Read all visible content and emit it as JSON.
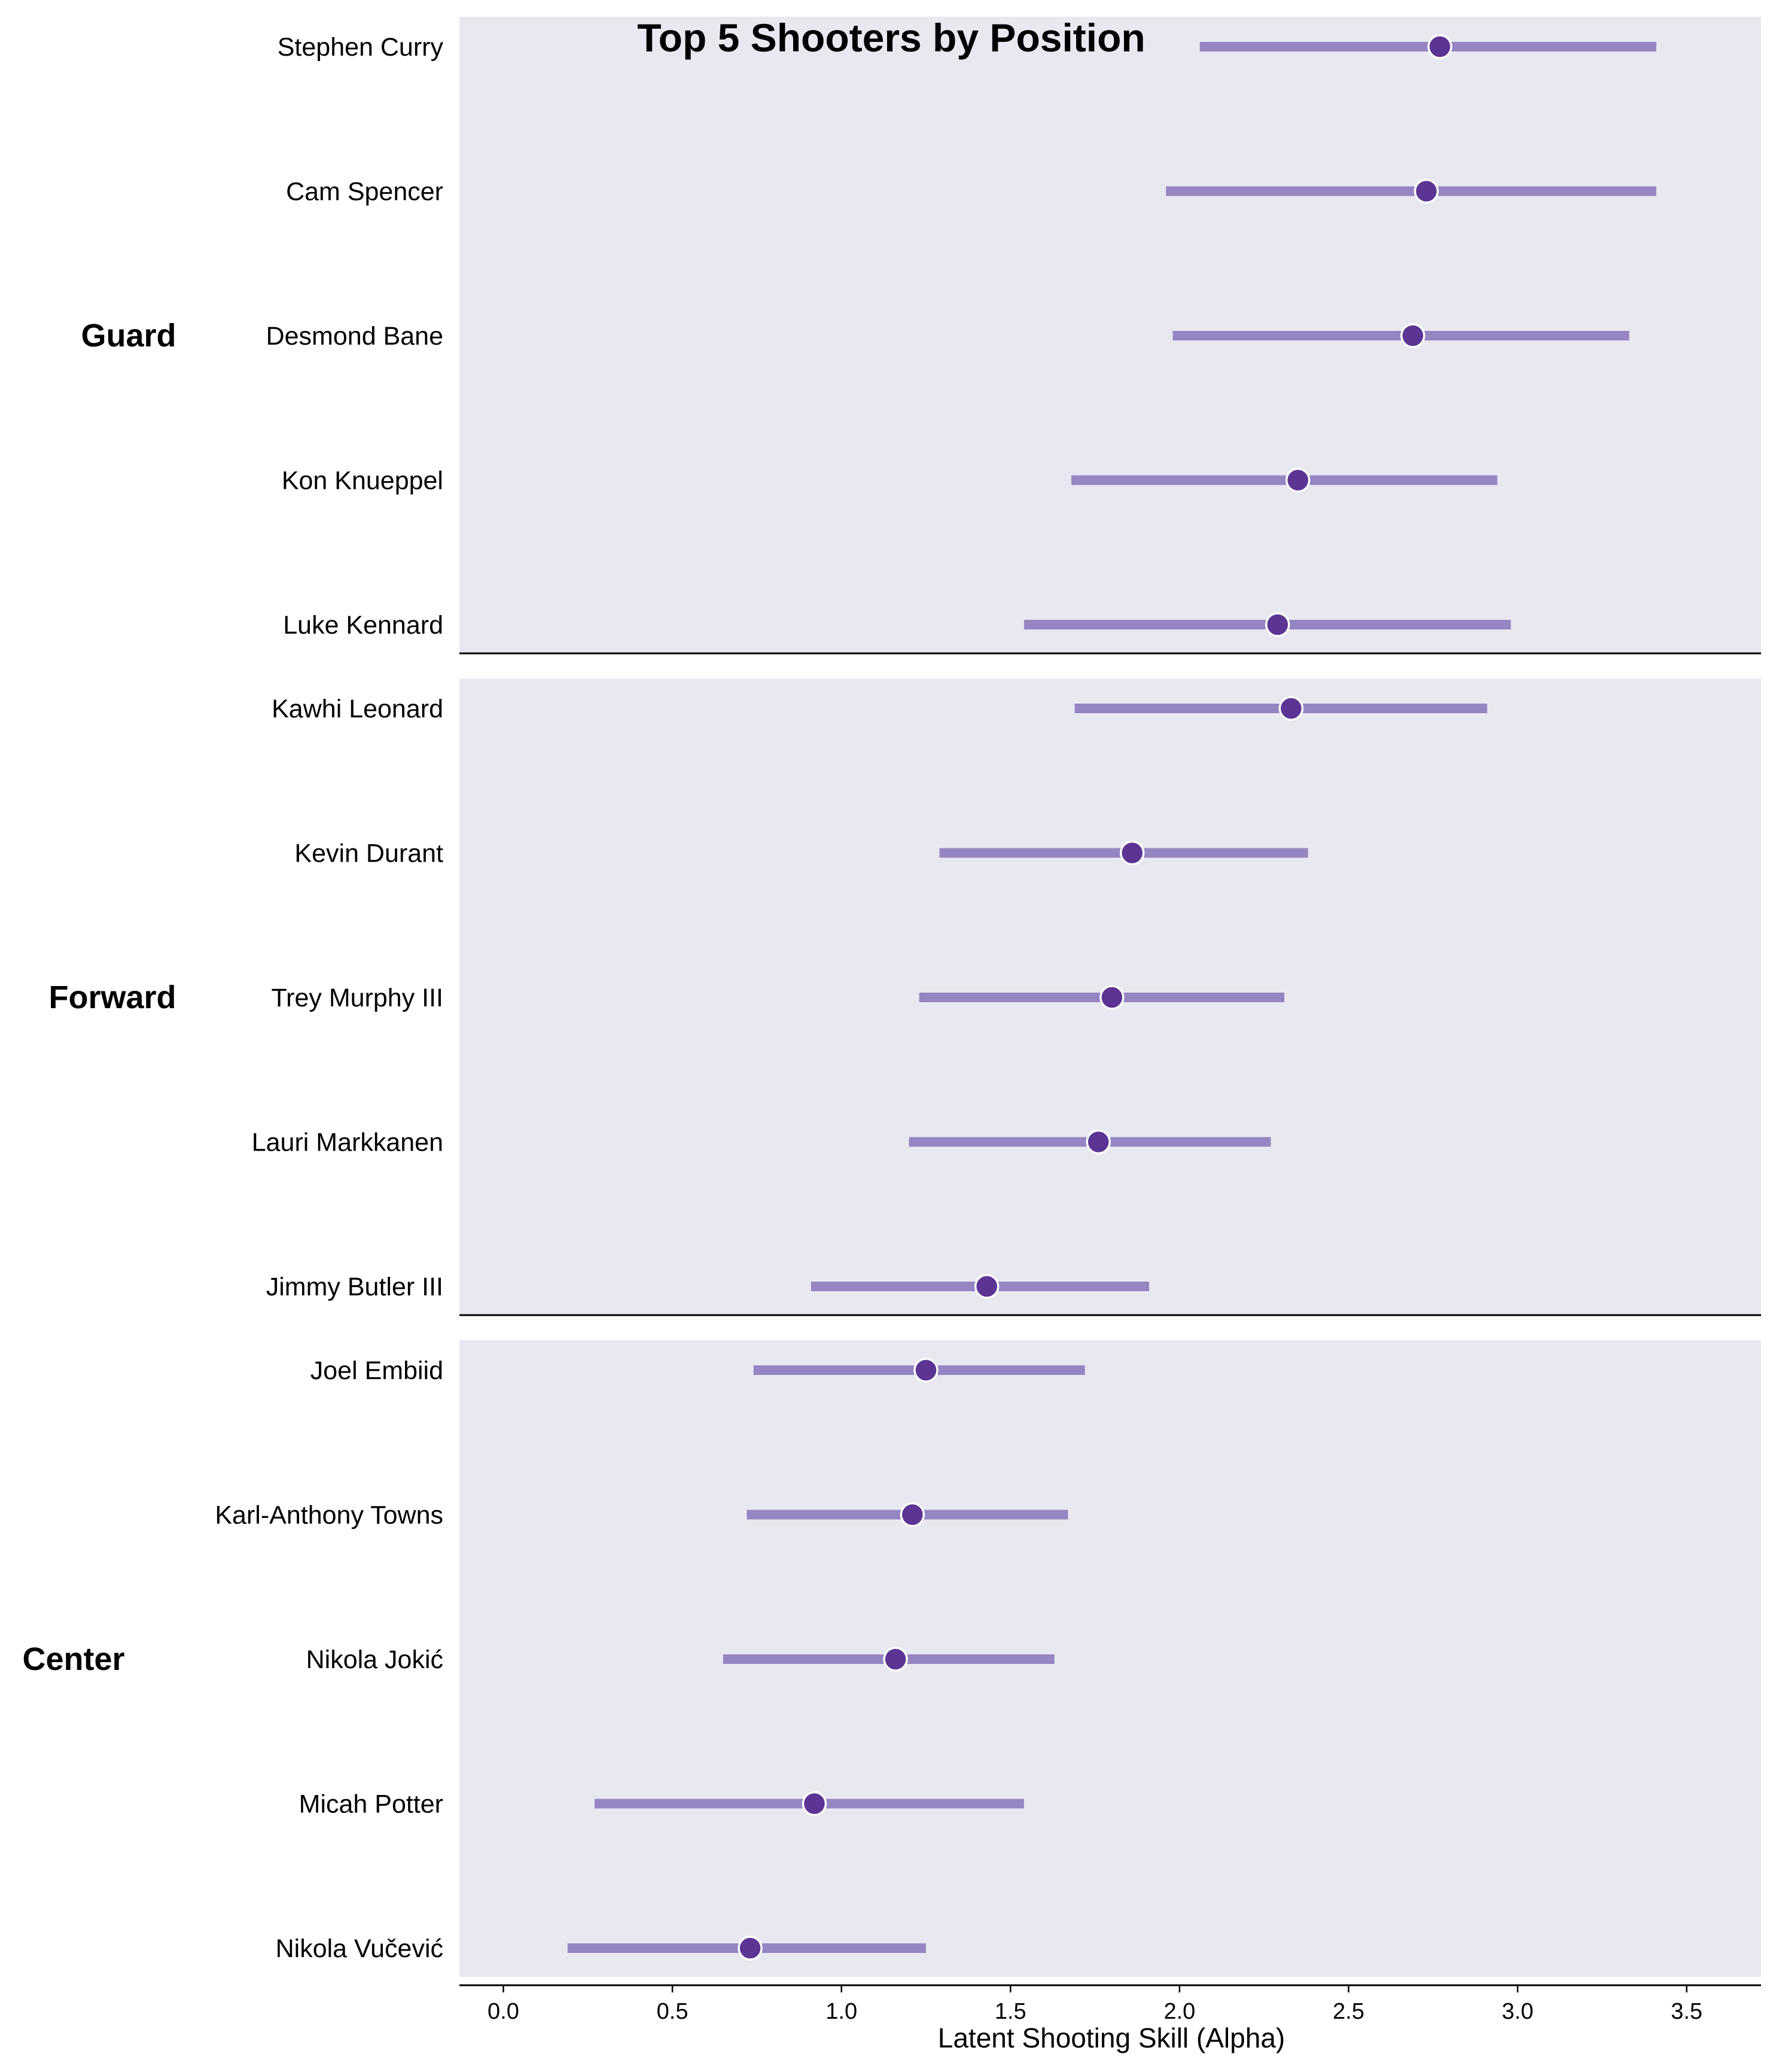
{
  "chart_data": {
    "type": "scatter",
    "title": "Top 5 Shooters by Position",
    "xlabel": "Latent Shooting Skill (Alpha)",
    "ylabel": "",
    "xlim": [
      -0.13,
      3.72
    ],
    "xticks": [
      0.0,
      0.5,
      1.0,
      1.5,
      2.0,
      2.5,
      3.0,
      3.5
    ],
    "tick_labels": [
      "0.0",
      "0.5",
      "1.0",
      "1.5",
      "2.0",
      "2.5",
      "3.0",
      "3.5"
    ],
    "grid": false,
    "point_type": "mean with interval",
    "colors": {
      "panel_bg": "#e8e8f0",
      "interval": "#9585c2",
      "point": "#5b3494",
      "point_edge": "#ffffff"
    },
    "groups": [
      {
        "name": "Guard",
        "players": [
          {
            "name": "Stephen Curry",
            "mean": 2.77,
            "low": 2.06,
            "high": 3.41
          },
          {
            "name": "Cam Spencer",
            "mean": 2.73,
            "low": 1.96,
            "high": 3.41
          },
          {
            "name": "Desmond Bane",
            "mean": 2.69,
            "low": 1.98,
            "high": 3.33
          },
          {
            "name": "Kon Knueppel",
            "mean": 2.35,
            "low": 1.68,
            "high": 2.94
          },
          {
            "name": "Luke Kennard",
            "mean": 2.29,
            "low": 1.54,
            "high": 2.98
          }
        ]
      },
      {
        "name": "Forward",
        "players": [
          {
            "name": "Kawhi Leonard",
            "mean": 2.33,
            "low": 1.69,
            "high": 2.91
          },
          {
            "name": "Kevin Durant",
            "mean": 1.86,
            "low": 1.29,
            "high": 2.38
          },
          {
            "name": "Trey Murphy III",
            "mean": 1.8,
            "low": 1.23,
            "high": 2.31
          },
          {
            "name": "Lauri Markkanen",
            "mean": 1.76,
            "low": 1.2,
            "high": 2.27
          },
          {
            "name": "Jimmy Butler III",
            "mean": 1.43,
            "low": 0.91,
            "high": 1.91
          }
        ]
      },
      {
        "name": "Center",
        "players": [
          {
            "name": "Joel Embiid",
            "mean": 1.25,
            "low": 0.74,
            "high": 1.72
          },
          {
            "name": "Karl-Anthony Towns",
            "mean": 1.21,
            "low": 0.72,
            "high": 1.67
          },
          {
            "name": "Nikola Jokić",
            "mean": 1.16,
            "low": 0.65,
            "high": 1.63
          },
          {
            "name": "Micah Potter",
            "mean": 0.92,
            "low": 0.27,
            "high": 1.54
          },
          {
            "name": "Nikola Vučević",
            "mean": 0.73,
            "low": 0.19,
            "high": 1.25
          }
        ]
      }
    ]
  }
}
